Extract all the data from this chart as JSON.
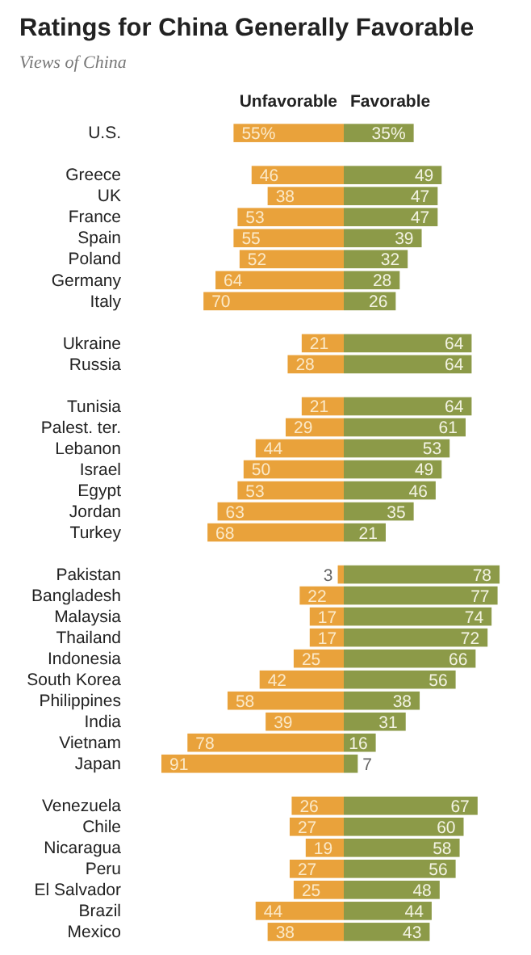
{
  "chart_data": [
    {
      "type": "bar",
      "orientation": "horizontal",
      "title": "Ratings for China Generally Favorable",
      "subtitle": "Views of China",
      "categories": [
        "U.S.",
        null,
        "Greece",
        "UK",
        "France",
        "Spain",
        "Poland",
        "Germany",
        "Italy",
        null,
        "Ukraine",
        "Russia",
        null,
        "Tunisia",
        "Palest. ter.",
        "Lebanon",
        "Israel",
        "Egypt",
        "Jordan",
        "Turkey",
        null,
        "Pakistan",
        "Bangladesh",
        "Malaysia",
        "Thailand",
        "Indonesia",
        "South Korea",
        "Philippines",
        "India",
        "Vietnam",
        "Japan",
        null,
        "Venezuela",
        "Chile",
        "Nicaragua",
        "Peru",
        "El Salvador",
        "Brazil",
        "Mexico"
      ],
      "series": [
        {
          "name": "Unfavorable",
          "color": "#e9a23b",
          "values": [
            55,
            null,
            46,
            38,
            53,
            55,
            52,
            64,
            70,
            null,
            21,
            28,
            null,
            21,
            29,
            44,
            50,
            53,
            63,
            68,
            null,
            3,
            22,
            17,
            17,
            25,
            42,
            58,
            39,
            78,
            91,
            null,
            26,
            27,
            19,
            27,
            25,
            44,
            38
          ],
          "value_labels": [
            "55%",
            null,
            "46",
            "38",
            "53",
            "55",
            "52",
            "64",
            "70",
            null,
            "21",
            "28",
            null,
            "21",
            "29",
            "44",
            "50",
            "53",
            "63",
            "68",
            null,
            "3",
            "22",
            "17",
            "17",
            "25",
            "42",
            "58",
            "39",
            "78",
            "91",
            null,
            "26",
            "27",
            "19",
            "27",
            "25",
            "44",
            "38"
          ]
        }
      ],
      "xlim": [
        91,
        0
      ],
      "tick_labels": "y",
      "legend": "top"
    },
    {
      "type": "bar",
      "orientation": "horizontal",
      "categories": [
        "U.S.",
        null,
        "Greece",
        "UK",
        "France",
        "Spain",
        "Poland",
        "Germany",
        "Italy",
        null,
        "Ukraine",
        "Russia",
        null,
        "Tunisia",
        "Palest. ter.",
        "Lebanon",
        "Israel",
        "Egypt",
        "Jordan",
        "Turkey",
        null,
        "Pakistan",
        "Bangladesh",
        "Malaysia",
        "Thailand",
        "Indonesia",
        "South Korea",
        "Philippines",
        "India",
        "Vietnam",
        "Japan",
        null,
        "Venezuela",
        "Chile",
        "Nicaragua",
        "Peru",
        "El Salvador",
        "Brazil",
        "Mexico"
      ],
      "series": [
        {
          "name": "Favorable",
          "color": "#8c9a48",
          "values": [
            35,
            null,
            49,
            47,
            47,
            39,
            32,
            28,
            26,
            null,
            64,
            64,
            null,
            64,
            61,
            53,
            49,
            46,
            35,
            21,
            null,
            78,
            77,
            74,
            72,
            66,
            56,
            38,
            31,
            16,
            7,
            null,
            67,
            60,
            58,
            56,
            48,
            44,
            43
          ],
          "value_labels": [
            "35%",
            null,
            "49",
            "47",
            "47",
            "39",
            "32",
            "28",
            "26",
            null,
            "64",
            "64",
            null,
            "64",
            "61",
            "53",
            "49",
            "46",
            "35",
            "21",
            null,
            "78",
            "77",
            "74",
            "72",
            "66",
            "56",
            "38",
            "31",
            "16",
            "7",
            null,
            "67",
            "60",
            "58",
            "56",
            "48",
            "44",
            "43"
          ]
        }
      ],
      "xlim": [
        0,
        80
      ],
      "tick_labels": false,
      "legend": "top"
    }
  ]
}
